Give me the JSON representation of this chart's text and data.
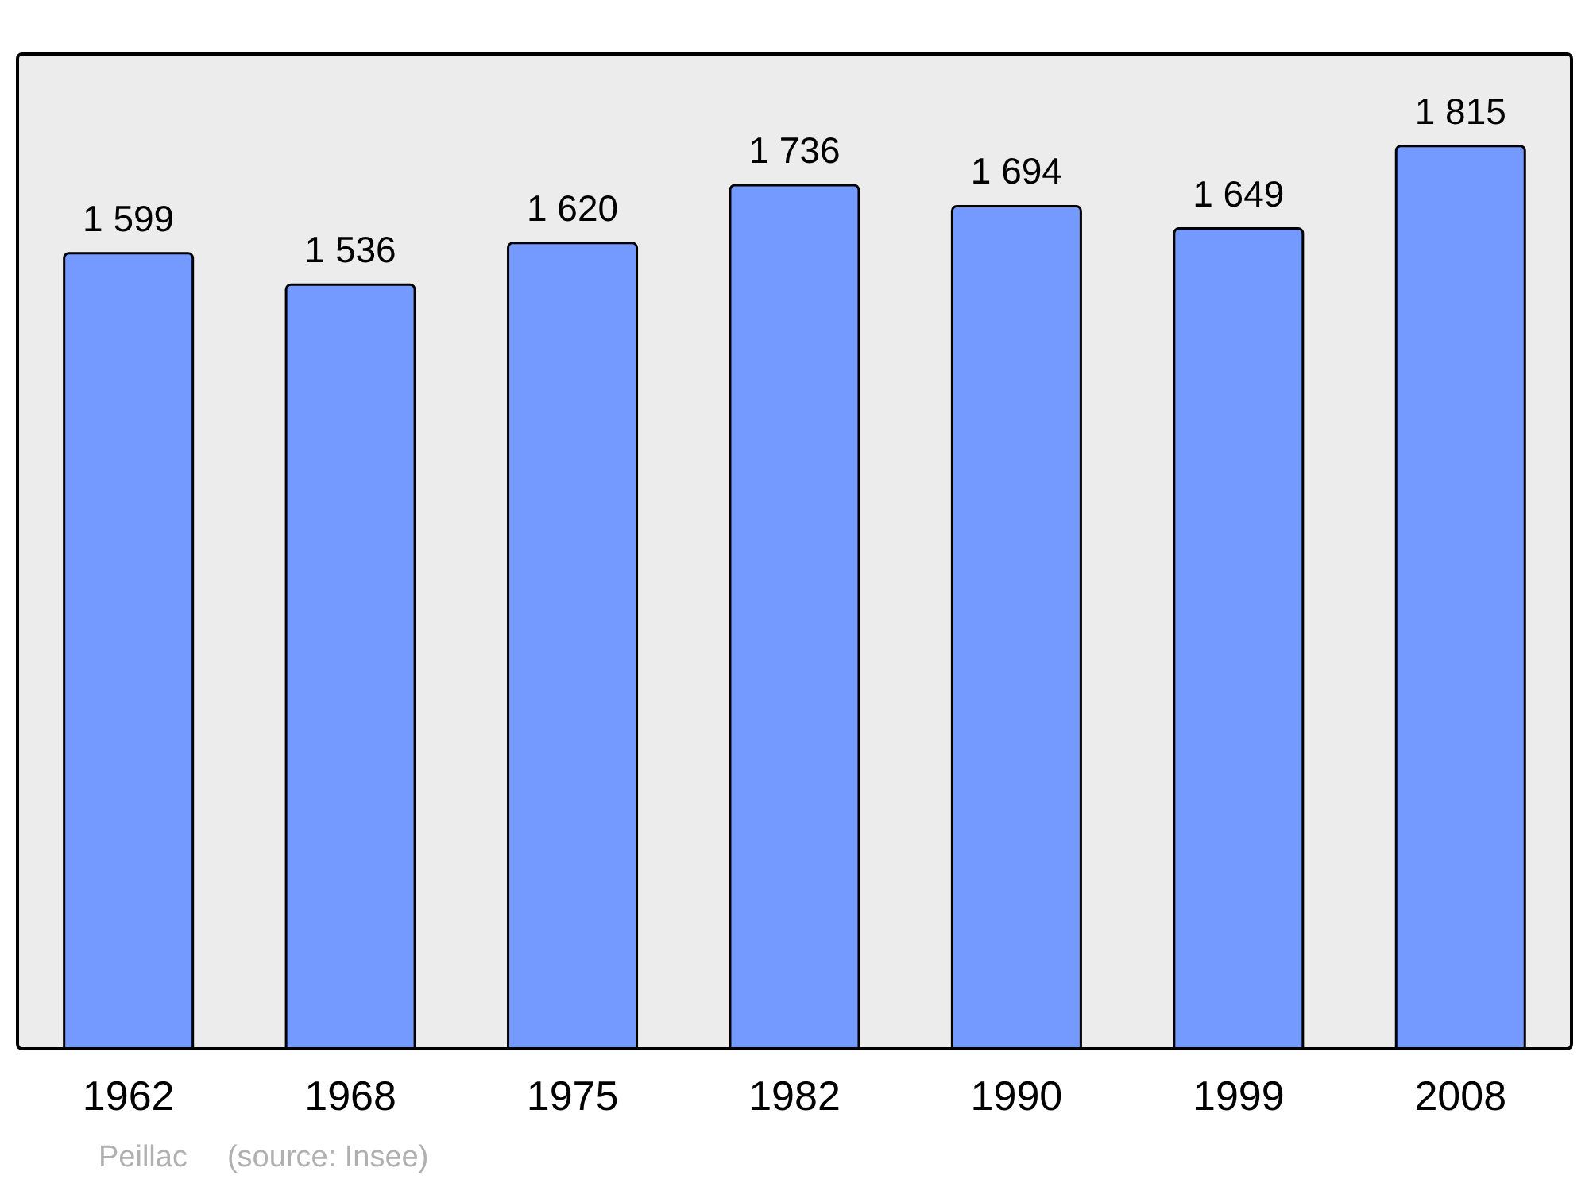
{
  "chart_data": {
    "type": "bar",
    "categories": [
      "1962",
      "1968",
      "1975",
      "1982",
      "1990",
      "1999",
      "2008"
    ],
    "values": [
      1599,
      1536,
      1620,
      1736,
      1694,
      1649,
      1815
    ],
    "value_labels": [
      "1 599",
      "1 536",
      "1 620",
      "1 736",
      "1 694",
      "1 649",
      "1 815"
    ],
    "color": "#7499ff",
    "grid": false,
    "annotations": [
      "Peillac",
      "(source: Insee)"
    ]
  }
}
